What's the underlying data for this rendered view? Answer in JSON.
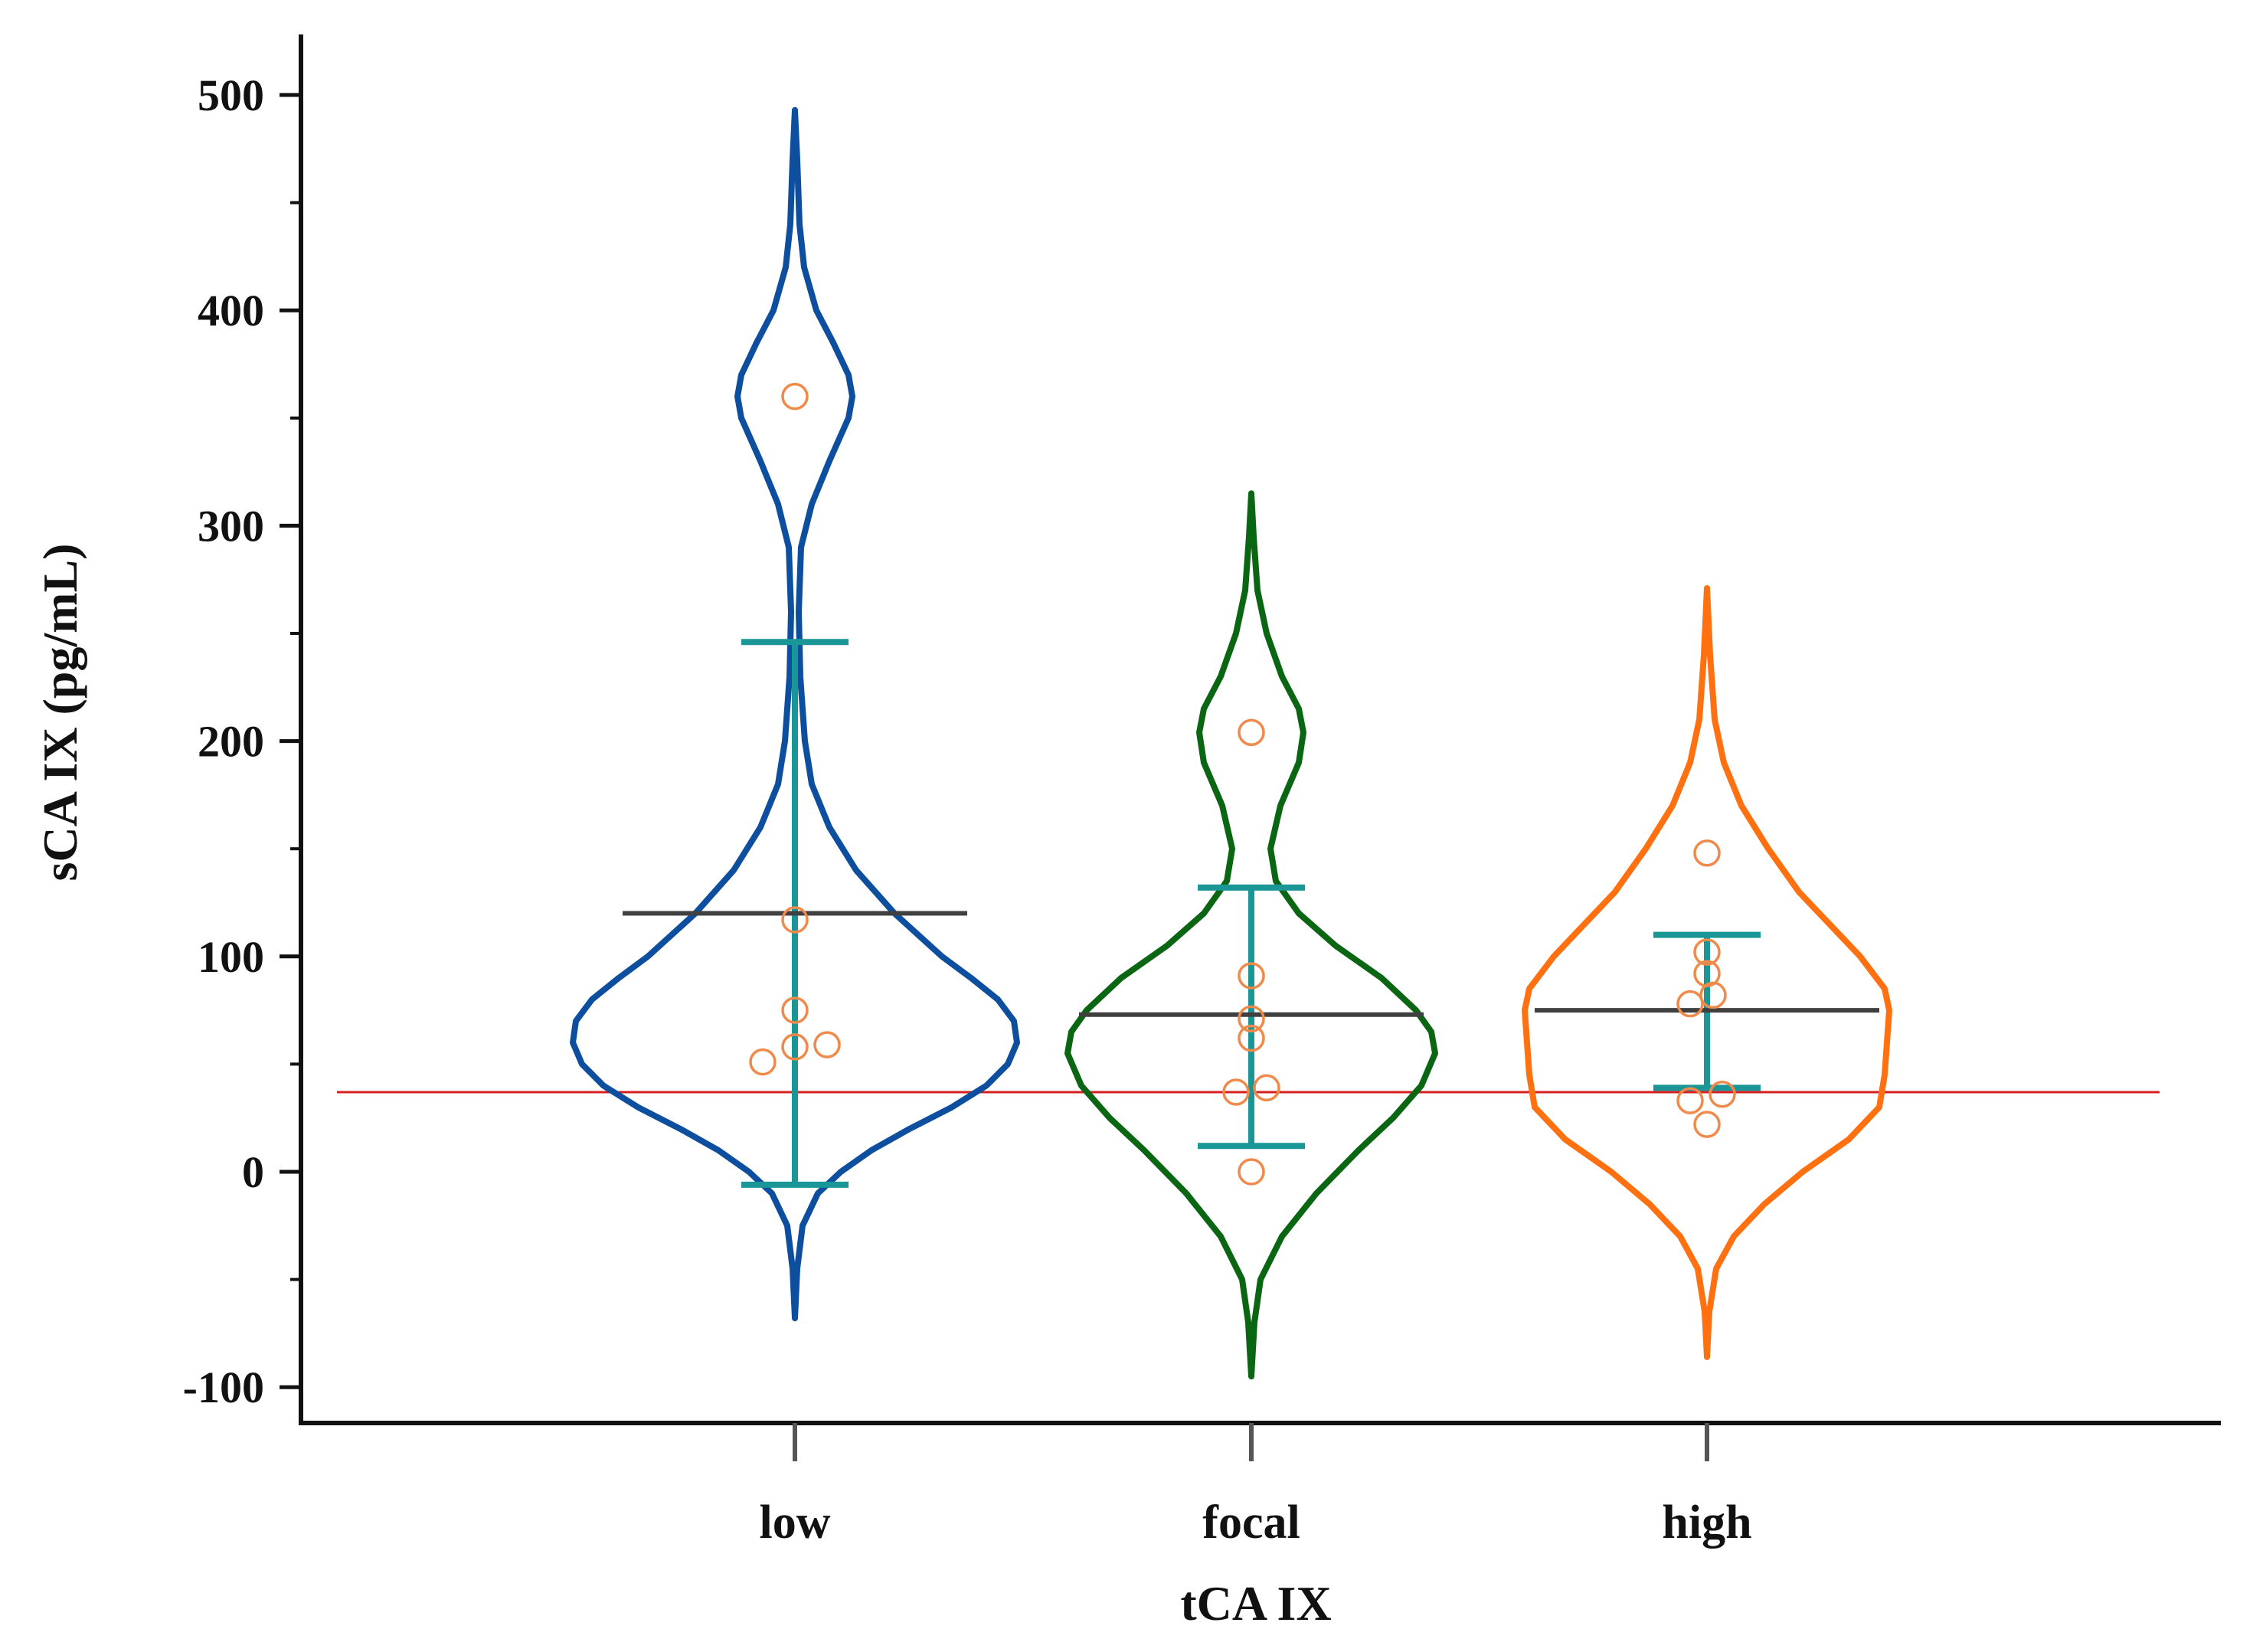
{
  "chart_data": {
    "type": "violin",
    "title": "",
    "xlabel": "tCA IX",
    "ylabel": "sCA IX (pg/mL)",
    "ylim": [
      -115,
      525
    ],
    "yticks": [
      -100,
      0,
      100,
      200,
      300,
      400,
      500
    ],
    "ytick_labels": [
      "-100",
      "0",
      "100",
      "200",
      "300",
      "400",
      "500"
    ],
    "categories": [
      "low",
      "focal",
      "high"
    ],
    "reference_line": {
      "y": 37,
      "color": "#d62020"
    },
    "colors": {
      "axis": "#111111",
      "mean_line": "#404040",
      "error_bar": "#1a9696",
      "points": "#f08a4b"
    },
    "series": [
      {
        "category": "low",
        "color": "#0d4f9e",
        "violin_range": [
          -68,
          493
        ],
        "mean": 120,
        "error_bar": [
          -6,
          246
        ],
        "points": [
          360,
          117,
          75,
          58,
          59,
          51
        ]
      },
      {
        "category": "focal",
        "color": "#0a6612",
        "violin_range": [
          -95,
          315
        ],
        "mean": 73,
        "error_bar": [
          12,
          132
        ],
        "points": [
          204,
          91,
          71,
          62,
          39,
          37,
          0
        ]
      },
      {
        "category": "high",
        "color": "#ff7010",
        "violin_range": [
          -86,
          271
        ],
        "mean": 75,
        "error_bar": [
          39,
          110
        ],
        "points": [
          148,
          102,
          92,
          82,
          78,
          36,
          33,
          22
        ]
      }
    ]
  }
}
